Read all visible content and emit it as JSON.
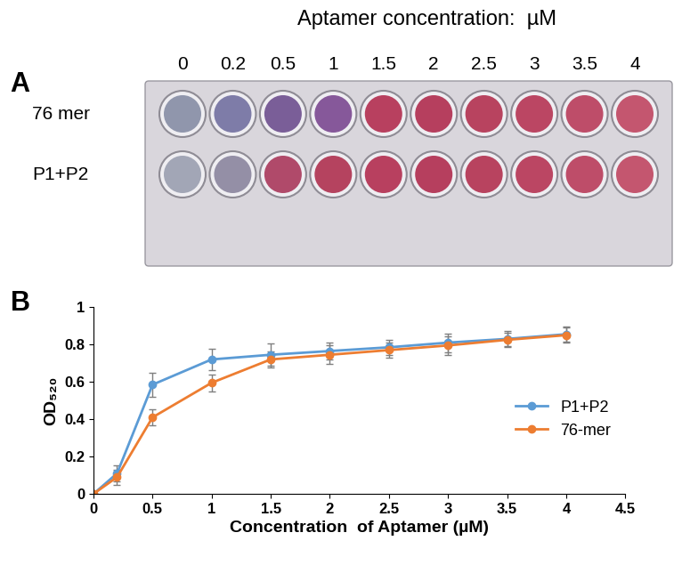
{
  "chart_data": [
    {
      "type": "plate",
      "panel": "A",
      "title": "Aptamer concentration:  µM",
      "columns": [
        0,
        0.2,
        0.5,
        1,
        1.5,
        2,
        2.5,
        3,
        3.5,
        4
      ],
      "rows": [
        {
          "name": "76 mer",
          "colors": [
            "#9096ac",
            "#7e7ca8",
            "#7a5e98",
            "#86589a",
            "#b8405f",
            "#b63f5e",
            "#b8435f",
            "#bb4663",
            "#be4d69",
            "#c4566f"
          ]
        },
        {
          "name": "P1+P2",
          "colors": [
            "#a2a6b6",
            "#948fa6",
            "#b04a6a",
            "#b5435f",
            "#b8405f",
            "#b63f5e",
            "#b8435f",
            "#bb4663",
            "#be4d69",
            "#c4566f"
          ]
        }
      ]
    },
    {
      "type": "line",
      "panel": "B",
      "x_label": "Concentration  of Aptamer (µM)",
      "y_label": "OD₅₂₀",
      "xlim": [
        0,
        4.5
      ],
      "xticks": [
        0,
        0.5,
        1,
        1.5,
        2,
        2.5,
        3,
        3.5,
        4,
        4.5
      ],
      "ylim": [
        0,
        1
      ],
      "yticks": [
        0,
        0.2,
        0.4,
        0.6,
        0.8,
        1
      ],
      "legend": "center right",
      "grid": false,
      "x": [
        0,
        0.2,
        0.5,
        1,
        1.5,
        2,
        2.5,
        3,
        3.5,
        4
      ],
      "series": [
        {
          "name": "P1+P2",
          "color": "#5b9bd5",
          "marker": "o",
          "values": [
            0,
            0.11,
            0.585,
            0.72,
            0.745,
            0.765,
            0.785,
            0.81,
            0.83,
            0.855
          ],
          "errors": [
            0,
            0.045,
            0.065,
            0.055,
            0.06,
            0.045,
            0.04,
            0.05,
            0.04,
            0.04
          ]
        },
        {
          "name": "76-mer",
          "color": "#ed7d31",
          "marker": "o",
          "values": [
            0,
            0.09,
            0.41,
            0.595,
            0.72,
            0.745,
            0.77,
            0.795,
            0.825,
            0.85
          ],
          "errors": [
            0,
            0.04,
            0.045,
            0.045,
            0.045,
            0.05,
            0.04,
            0.05,
            0.04,
            0.04
          ]
        }
      ]
    }
  ]
}
